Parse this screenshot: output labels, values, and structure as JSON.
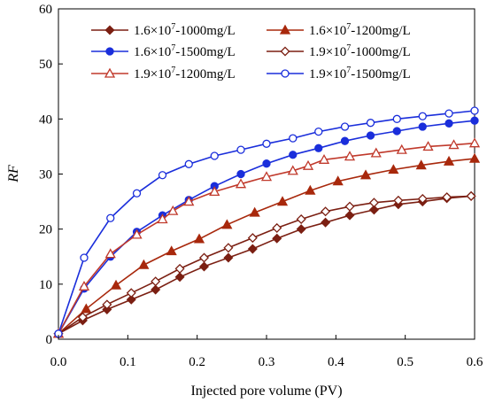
{
  "chart_data": {
    "type": "line",
    "title": "",
    "xlabel": "Injected pore volume (PV)",
    "ylabel": "RF",
    "xlim": [
      0,
      0.6
    ],
    "ylim": [
      0,
      60
    ],
    "xticks": [
      "0.0",
      "0.1",
      "0.2",
      "0.3",
      "0.4",
      "0.5",
      "0.6"
    ],
    "yticks": [
      "0",
      "10",
      "20",
      "30",
      "40",
      "50",
      "60"
    ],
    "grid": false,
    "legend_position": "top-inside",
    "series": [
      {
        "name": "1.6×10⁷-1000mg/L",
        "color": "#7B1F12",
        "marker": "diamond",
        "filled": true,
        "x": [
          0.0,
          0.035,
          0.07,
          0.105,
          0.14,
          0.175,
          0.21,
          0.245,
          0.28,
          0.315,
          0.35,
          0.385,
          0.42,
          0.455,
          0.49,
          0.525,
          0.56,
          0.595
        ],
        "y": [
          1.0,
          3.4,
          5.4,
          7.2,
          9.0,
          11.3,
          13.2,
          14.8,
          16.4,
          18.3,
          20.0,
          21.2,
          22.5,
          23.5,
          24.5,
          25.0,
          25.6,
          26.0
        ]
      },
      {
        "name": "1.6×10⁷-1200mg/L",
        "color": "#A8280C",
        "marker": "triangle",
        "filled": true,
        "x": [
          0.0,
          0.04,
          0.083,
          0.123,
          0.163,
          0.203,
          0.243,
          0.283,
          0.323,
          0.363,
          0.403,
          0.443,
          0.483,
          0.523,
          0.563,
          0.6
        ],
        "y": [
          1.0,
          5.5,
          9.8,
          13.5,
          16.0,
          18.2,
          20.8,
          23.0,
          25.0,
          27.0,
          28.7,
          29.8,
          30.8,
          31.6,
          32.3,
          32.8
        ]
      },
      {
        "name": "1.6×10⁷-1500mg/L",
        "color": "#1A2EDB",
        "marker": "circle",
        "filled": true,
        "x": [
          0.0,
          0.037,
          0.075,
          0.113,
          0.15,
          0.188,
          0.225,
          0.263,
          0.3,
          0.338,
          0.375,
          0.413,
          0.45,
          0.488,
          0.525,
          0.563,
          0.6
        ],
        "y": [
          1.0,
          9.2,
          15.0,
          19.5,
          22.5,
          25.3,
          27.8,
          30.0,
          31.9,
          33.5,
          34.7,
          36.0,
          37.0,
          37.8,
          38.6,
          39.2,
          39.7
        ]
      },
      {
        "name": "1.9×10⁷-1000mg/L",
        "color": "#7B1F12",
        "marker": "diamond",
        "filled": false,
        "x": [
          0.0,
          0.035,
          0.07,
          0.105,
          0.14,
          0.175,
          0.21,
          0.245,
          0.28,
          0.315,
          0.35,
          0.385,
          0.42,
          0.455,
          0.49,
          0.525,
          0.56,
          0.595
        ],
        "y": [
          1.0,
          4.0,
          6.3,
          8.4,
          10.5,
          12.8,
          14.8,
          16.6,
          18.4,
          20.2,
          21.8,
          23.2,
          24.1,
          24.8,
          25.2,
          25.5,
          25.8,
          26.0
        ]
      },
      {
        "name": "1.9×10⁷-1200mg/L",
        "color": "#C0392B",
        "marker": "triangle",
        "filled": false,
        "x": [
          0.0,
          0.037,
          0.075,
          0.113,
          0.15,
          0.165,
          0.188,
          0.225,
          0.263,
          0.3,
          0.338,
          0.36,
          0.383,
          0.42,
          0.458,
          0.495,
          0.533,
          0.57,
          0.6
        ],
        "y": [
          1.0,
          9.6,
          15.5,
          19.0,
          21.8,
          23.3,
          25.0,
          26.8,
          28.2,
          29.5,
          30.6,
          31.5,
          32.6,
          33.2,
          33.8,
          34.4,
          35.0,
          35.3,
          35.6
        ]
      },
      {
        "name": "1.9×10⁷-1500mg/L",
        "color": "#1A2EDB",
        "marker": "circle",
        "filled": false,
        "x": [
          0.0,
          0.037,
          0.075,
          0.113,
          0.15,
          0.188,
          0.225,
          0.263,
          0.3,
          0.338,
          0.375,
          0.413,
          0.45,
          0.488,
          0.525,
          0.563,
          0.6
        ],
        "y": [
          1.0,
          14.8,
          22.0,
          26.5,
          29.8,
          31.8,
          33.3,
          34.4,
          35.5,
          36.5,
          37.7,
          38.6,
          39.3,
          40.0,
          40.5,
          41.0,
          41.5
        ]
      }
    ]
  }
}
